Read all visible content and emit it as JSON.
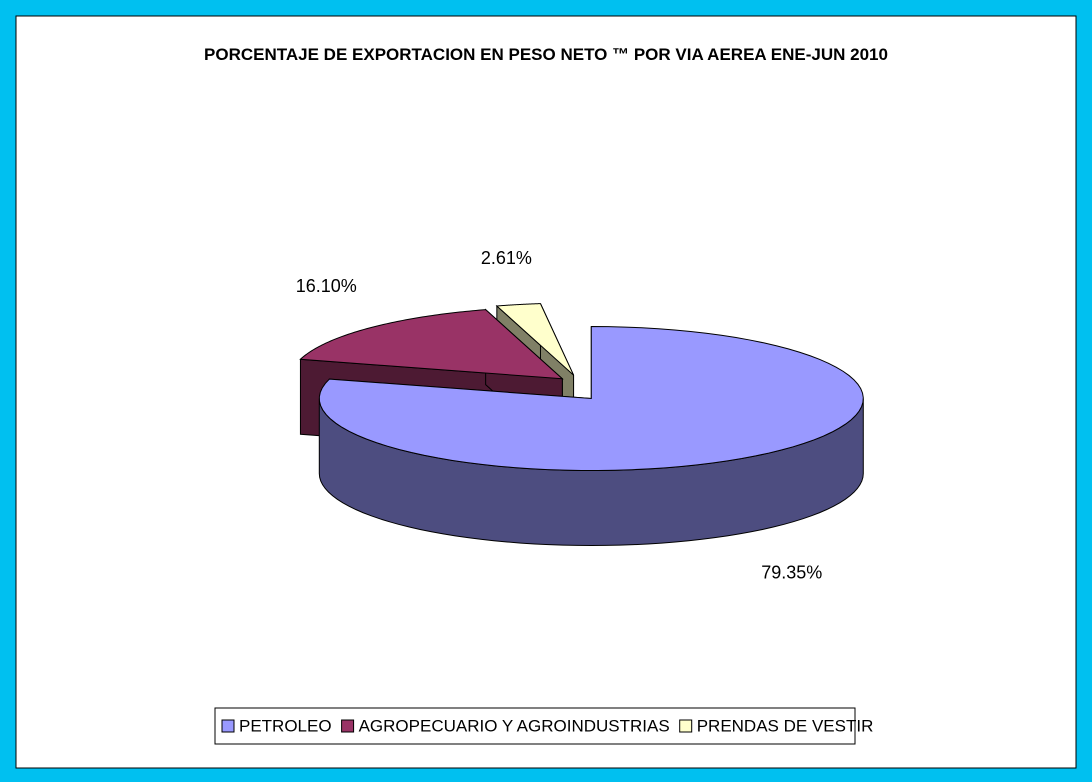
{
  "chart_data": {
    "type": "pie3d",
    "title": "PORCENTAJE DE EXPORTACION EN PESO NETO ™ POR VIA AEREA ENE-JUN 2010",
    "categories": [
      "PETROLEO",
      "AGROPECUARIO Y AGROINDUSTRIAS",
      "PRENDAS DE VESTIR"
    ],
    "values": [
      79.35,
      16.1,
      2.61
    ],
    "value_labels": [
      "79.35%",
      "16.10%",
      "2.61%"
    ],
    "colors": [
      "#9999ff",
      "#993366",
      "#ffffcc"
    ],
    "legend": "bottom"
  }
}
